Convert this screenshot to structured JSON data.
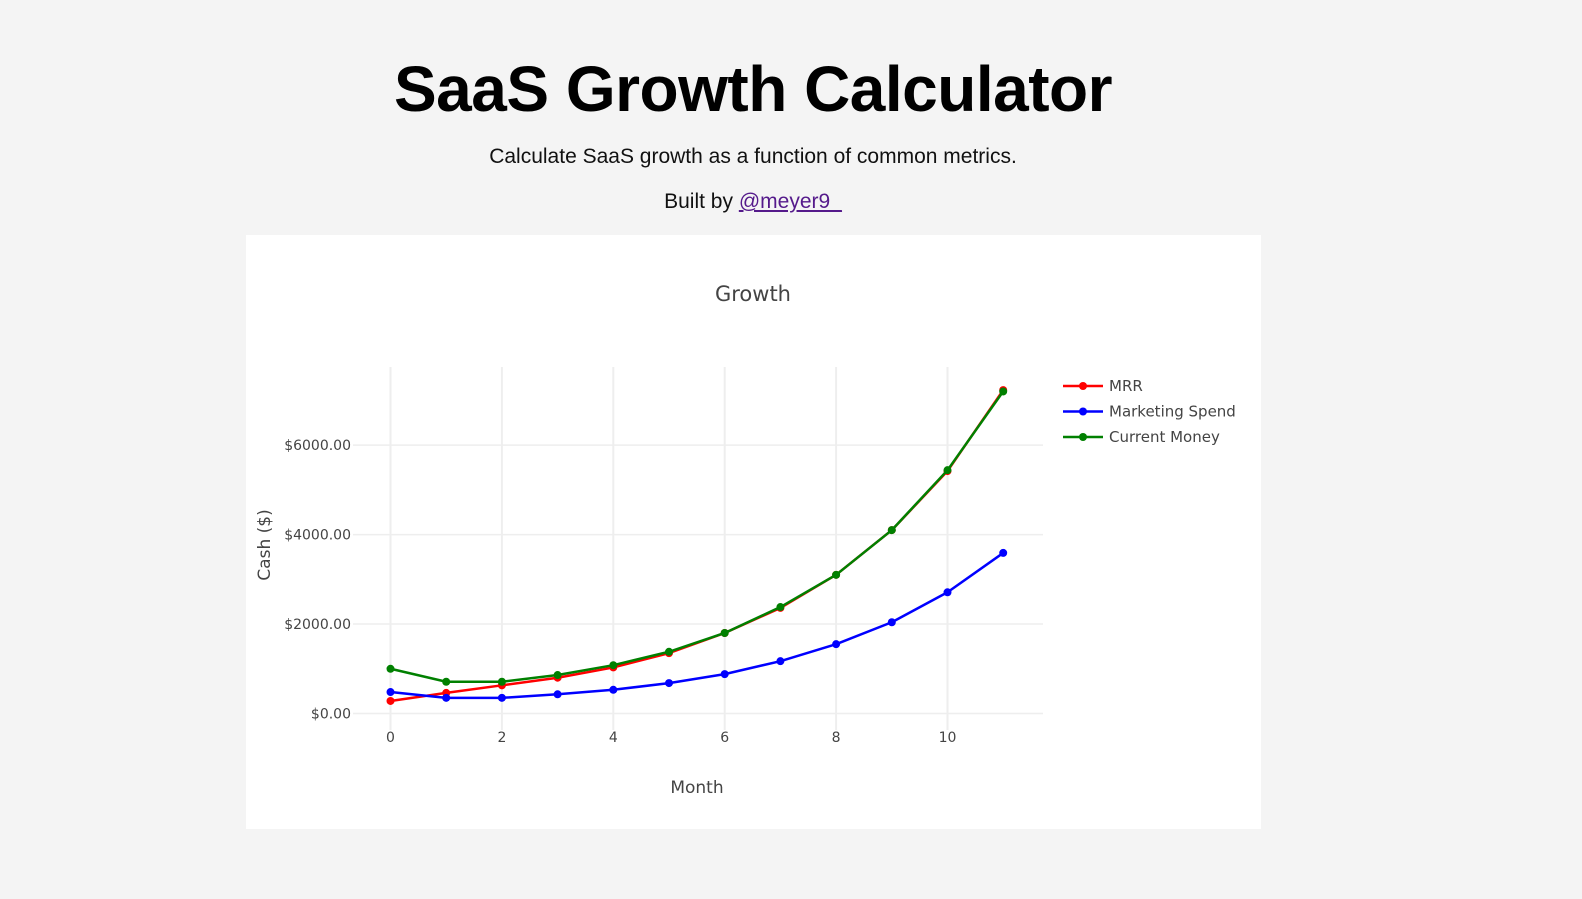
{
  "header": {
    "title": "SaaS Growth Calculator",
    "subtitle": "Calculate SaaS growth as a function of common metrics.",
    "built_by_prefix": "Built by ",
    "built_by_link": "@meyer9_"
  },
  "colors": {
    "background": "#f4f4f4",
    "link": "#551a8b",
    "mrr": "#ff0000",
    "marketing": "#0000ff",
    "current": "#008000"
  },
  "chart_data": {
    "type": "line",
    "title": "Growth",
    "xlabel": "Month",
    "ylabel": "Cash ($)",
    "x": [
      0,
      1,
      2,
      3,
      4,
      5,
      6,
      7,
      8,
      9,
      10,
      11
    ],
    "x_ticks": [
      "0",
      "2",
      "4",
      "6",
      "8",
      "10"
    ],
    "y_ticks": [
      "$0.00",
      "$2000.00",
      "$4000.00",
      "$6000.00"
    ],
    "ylim": [
      -200,
      7750
    ],
    "xlim": [
      -0.6,
      11.7
    ],
    "grid": true,
    "legend_position": "top-right-outside",
    "series": [
      {
        "name": "MRR",
        "color": "#ff0000",
        "values": [
          280,
          460,
          630,
          800,
          1030,
          1350,
          1800,
          2360,
          3100,
          4100,
          5420,
          7230
        ]
      },
      {
        "name": "Marketing Spend",
        "color": "#0000ff",
        "values": [
          480,
          350,
          350,
          430,
          530,
          680,
          880,
          1170,
          1550,
          2040,
          2710,
          3590
        ]
      },
      {
        "name": "Current Money",
        "color": "#008000",
        "values": [
          1000,
          710,
          710,
          860,
          1080,
          1380,
          1800,
          2380,
          3100,
          4100,
          5440,
          7200
        ]
      }
    ]
  }
}
